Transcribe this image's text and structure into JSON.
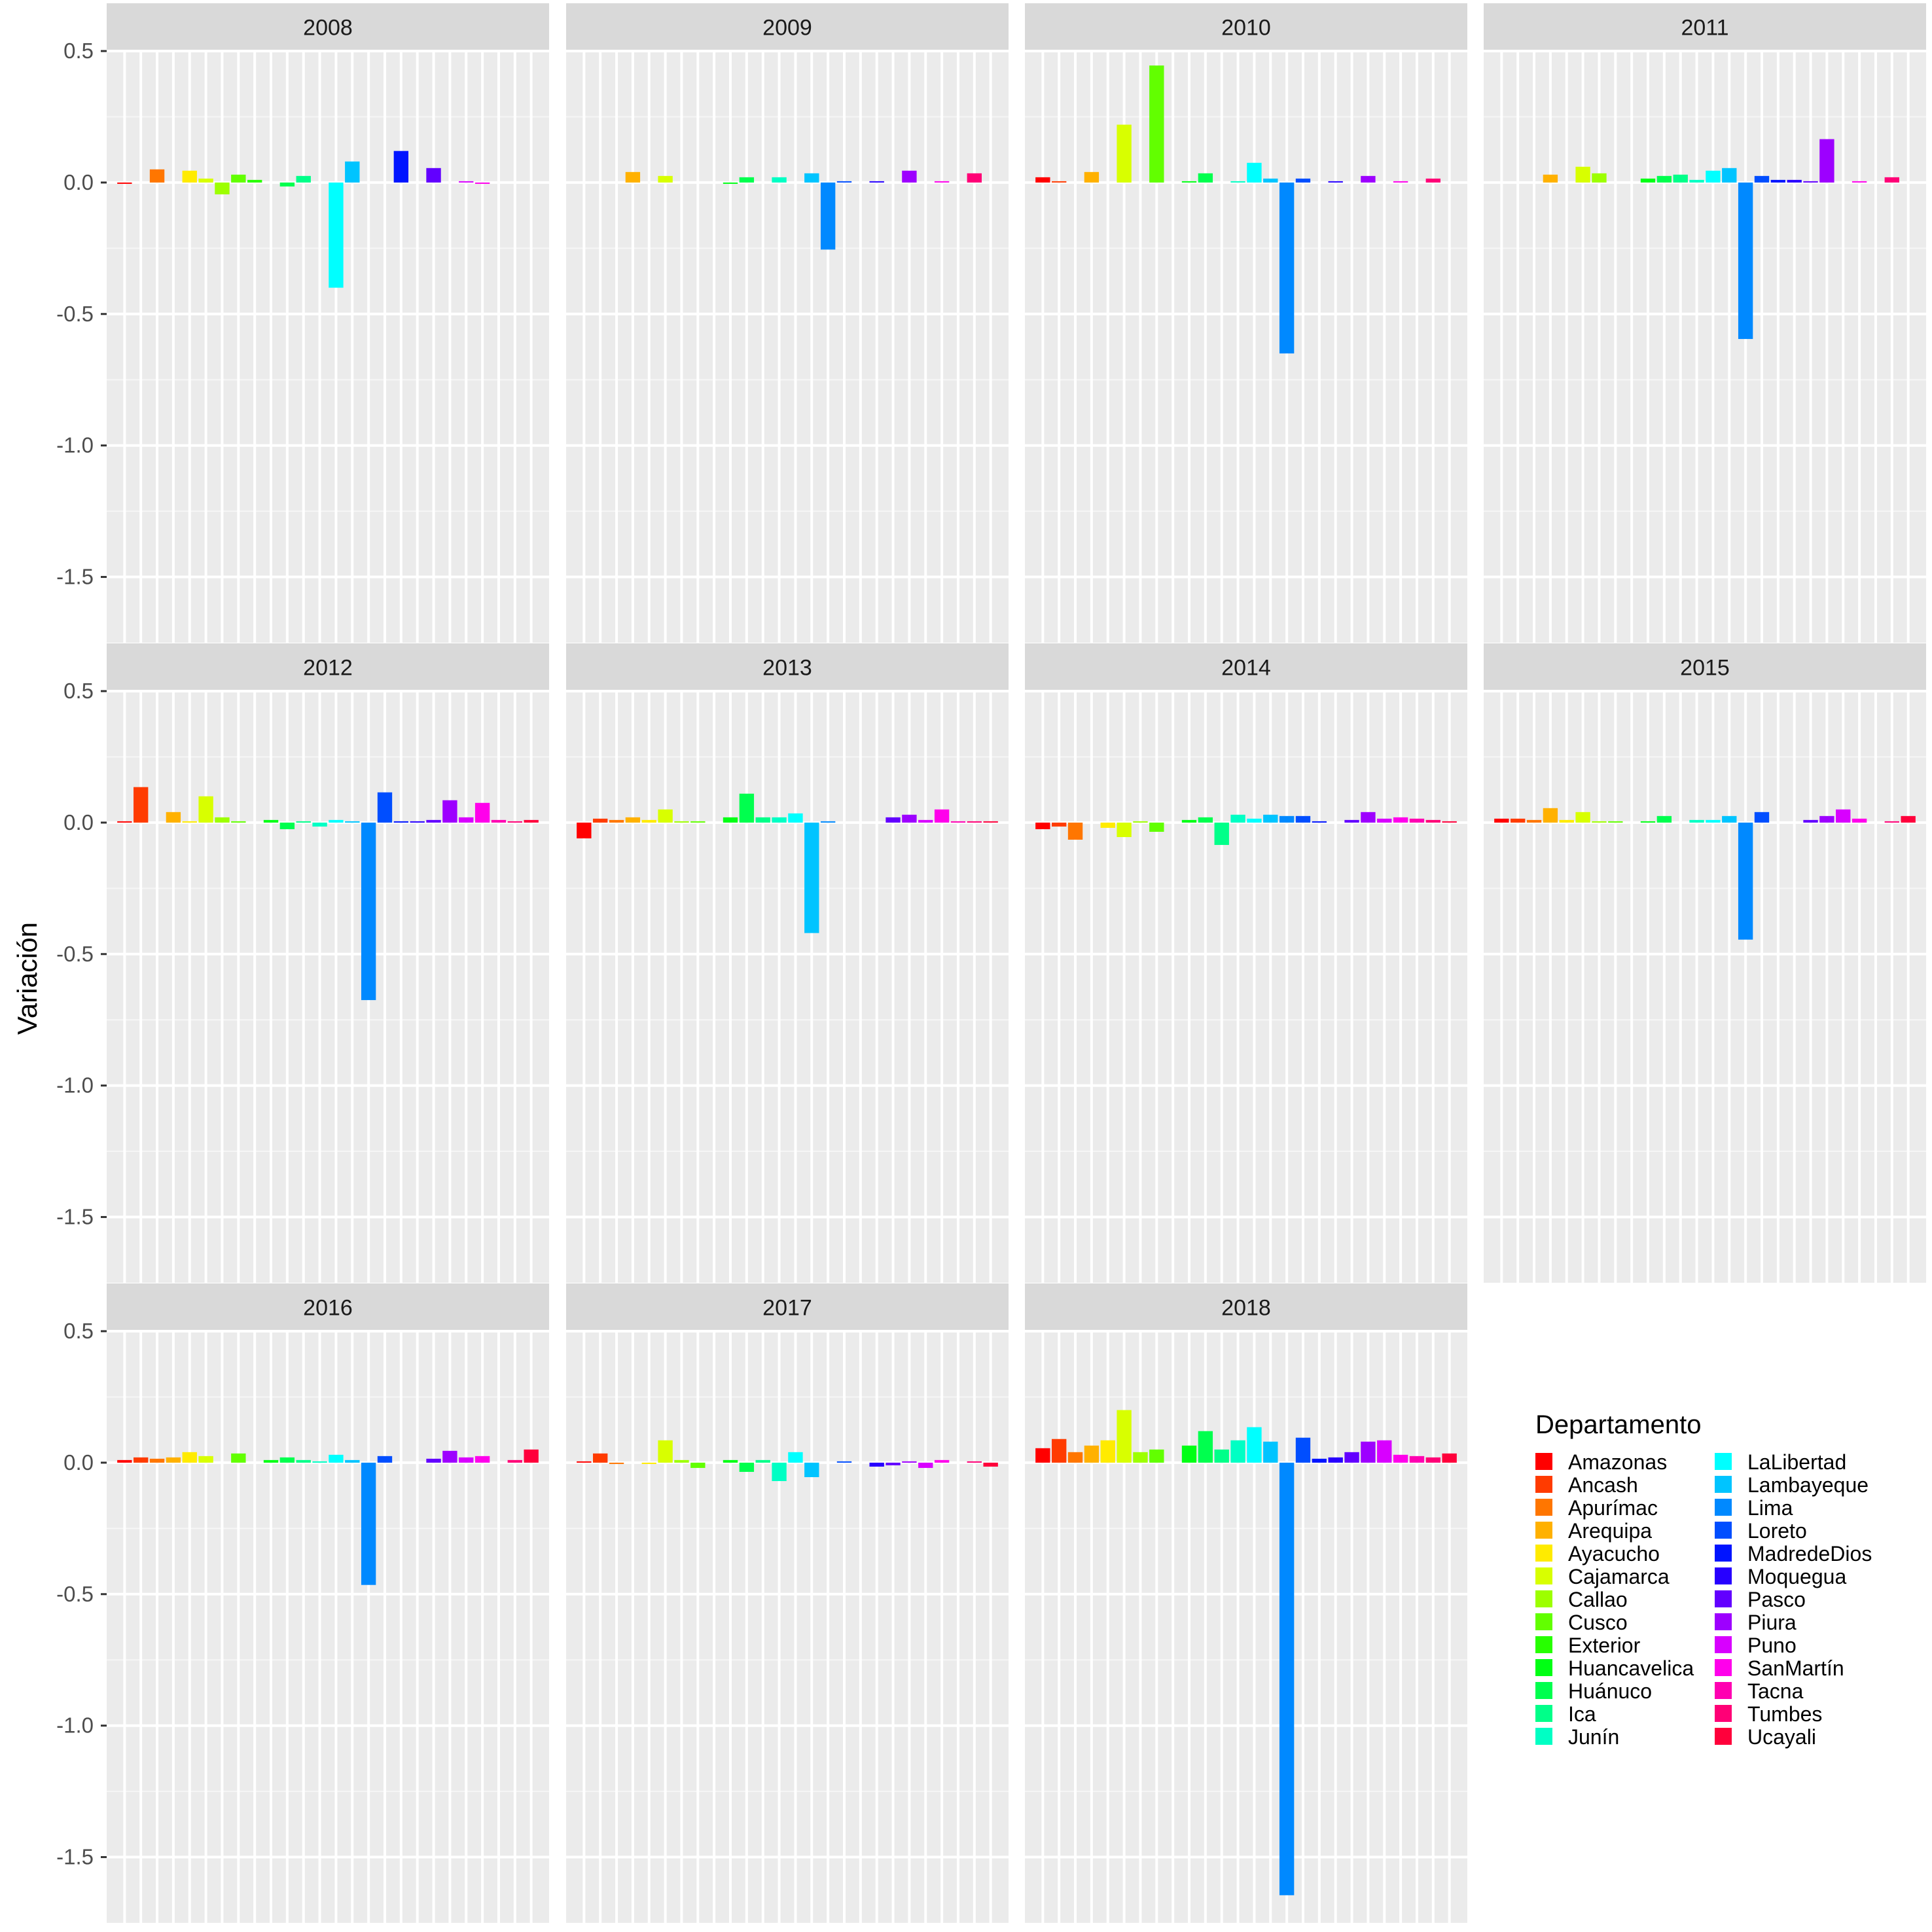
{
  "chart_data": {
    "type": "bar",
    "ylabel": "Variación",
    "ylim": [
      -1.75,
      0.5
    ],
    "yticks": [
      0.5,
      0.0,
      -0.5,
      -1.0,
      -1.5
    ],
    "ytick_labels": [
      "0.5",
      "0.0",
      "-0.5",
      "-1.0",
      "-1.5"
    ],
    "grid": true,
    "legend": {
      "title": "Departamento",
      "position": "right"
    },
    "categories": [
      "Amazonas",
      "Ancash",
      "Apurímac",
      "Arequipa",
      "Ayacucho",
      "Cajamarca",
      "Callao",
      "Cusco",
      "Exterior",
      "Huancavelica",
      "Huánuco",
      "Ica",
      "Junín",
      "LaLibertad",
      "Lambayeque",
      "Lima",
      "Loreto",
      "MadredeDios",
      "Moquegua",
      "Pasco",
      "Piura",
      "Puno",
      "SanMartín",
      "Tacna",
      "Tumbes",
      "Ucayali"
    ],
    "colors": [
      "#FF0000",
      "#FF3B00",
      "#FF7600",
      "#FFB100",
      "#FFEB00",
      "#D8FF00",
      "#9DFF00",
      "#62FF00",
      "#27FF00",
      "#00FF14",
      "#00FF4E",
      "#00FF89",
      "#00FFC4",
      "#00FFFF",
      "#00C4FF",
      "#0089FF",
      "#004EFF",
      "#0014FF",
      "#2700FF",
      "#6200FF",
      "#9D00FF",
      "#D800FF",
      "#FF00EB",
      "#FF00B1",
      "#FF0076",
      "#FF003B"
    ],
    "panels": [
      {
        "label": "2008",
        "values": [
          -0.005,
          0,
          0.05,
          0,
          0.045,
          0.015,
          -0.045,
          0.03,
          0.01,
          0,
          -0.015,
          0.025,
          0,
          -0.4,
          0.08,
          0,
          0,
          0.12,
          0,
          0.055,
          0,
          0.005,
          -0.005,
          0,
          0,
          0
        ]
      },
      {
        "label": "2009",
        "values": [
          0,
          0,
          0,
          0.04,
          0,
          0.025,
          0,
          0,
          0,
          -0.005,
          0.02,
          0,
          0.02,
          0,
          0.035,
          -0.255,
          0.005,
          0,
          0.005,
          0,
          0.045,
          0,
          0.005,
          0,
          0.035,
          0
        ]
      },
      {
        "label": "2010",
        "values": [
          0.02,
          0.005,
          0,
          0.04,
          0,
          0.22,
          0,
          0.445,
          0,
          0.005,
          0.035,
          0,
          0.005,
          0.075,
          0.015,
          -0.65,
          0.015,
          0,
          0.005,
          0,
          0.025,
          0,
          0.005,
          0,
          0.015,
          0
        ]
      },
      {
        "label": "2011",
        "values": [
          0,
          0,
          0,
          0.03,
          0,
          0.06,
          0.035,
          0,
          0,
          0.015,
          0.025,
          0.03,
          0.01,
          0.045,
          0.055,
          -0.595,
          0.025,
          0.01,
          0.01,
          0.005,
          0.165,
          0,
          0.005,
          0,
          0.02,
          0
        ]
      },
      {
        "label": "2012",
        "values": [
          0.005,
          0.135,
          0,
          0.04,
          0.005,
          0.1,
          0.02,
          0.005,
          0,
          0.01,
          -0.025,
          0.005,
          -0.015,
          0.01,
          0.005,
          -0.675,
          0.115,
          0.005,
          0.005,
          0.01,
          0.085,
          0.02,
          0.075,
          0.01,
          0.005,
          0.01
        ]
      },
      {
        "label": "2013",
        "values": [
          -0.06,
          0.015,
          0.01,
          0.02,
          0.01,
          0.05,
          0.005,
          0.005,
          0,
          0.02,
          0.11,
          0.02,
          0.02,
          0.035,
          -0.42,
          0.005,
          0,
          0,
          0,
          0.02,
          0.03,
          0.01,
          0.05,
          0.005,
          0.005,
          0.005
        ]
      },
      {
        "label": "2014",
        "values": [
          -0.025,
          -0.015,
          -0.065,
          0,
          -0.02,
          -0.055,
          0.005,
          -0.035,
          0,
          0.01,
          0.02,
          -0.085,
          0.03,
          0.015,
          0.03,
          0.025,
          0.025,
          0.005,
          0,
          0.01,
          0.04,
          0.015,
          0.02,
          0.015,
          0.01,
          0.005
        ]
      },
      {
        "label": "2015",
        "values": [
          0.015,
          0.015,
          0.01,
          0.055,
          0.01,
          0.04,
          0.005,
          0.005,
          0,
          0.005,
          0.025,
          0,
          0.01,
          0.01,
          0.025,
          -0.445,
          0.04,
          0,
          0,
          0.01,
          0.025,
          0.05,
          0.015,
          0,
          0.005,
          0.025
        ]
      },
      {
        "label": "2016",
        "values": [
          0.01,
          0.02,
          0.015,
          0.02,
          0.04,
          0.025,
          0,
          0.035,
          0,
          0.01,
          0.02,
          0.01,
          0.005,
          0.03,
          0.01,
          -0.465,
          0.025,
          0,
          0,
          0.015,
          0.045,
          0.02,
          0.025,
          0,
          0.01,
          0.05
        ]
      },
      {
        "label": "2017",
        "values": [
          0.005,
          0.035,
          -0.005,
          0,
          -0.005,
          0.085,
          0.01,
          -0.02,
          0,
          0.01,
          -0.035,
          0.01,
          -0.07,
          0.04,
          -0.055,
          0,
          0.005,
          0,
          -0.015,
          -0.01,
          0.005,
          -0.02,
          0.01,
          0,
          0.005,
          -0.015
        ]
      },
      {
        "label": "2018",
        "values": [
          0.055,
          0.09,
          0.04,
          0.065,
          0.085,
          0.2,
          0.04,
          0.05,
          0,
          0.065,
          0.12,
          0.05,
          0.085,
          0.135,
          0.08,
          -1.645,
          0.095,
          0.015,
          0.02,
          0.04,
          0.08,
          0.085,
          0.03,
          0.025,
          0.02,
          0.035
        ]
      }
    ]
  }
}
